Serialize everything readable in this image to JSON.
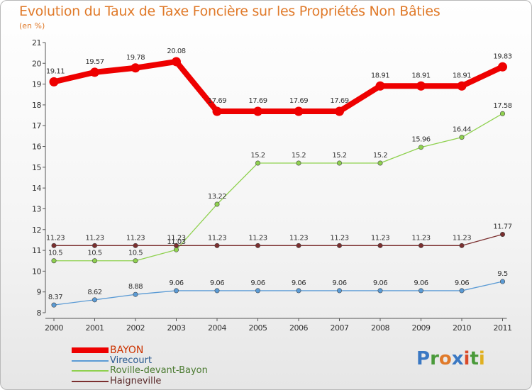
{
  "title": "Evolution du Taux de Taxe Foncière sur les Propriétés Non Bâties",
  "subtitle": "(en %)",
  "logo": {
    "letters": [
      {
        "ch": "P",
        "color": "#3a78c3"
      },
      {
        "ch": "r",
        "color": "#4a9a3a"
      },
      {
        "ch": "o",
        "color": "#e07a2a"
      },
      {
        "ch": "x",
        "color": "#3a78c3"
      },
      {
        "ch": "i",
        "color": "#d94a2a"
      },
      {
        "ch": "t",
        "color": "#4a9a3a"
      },
      {
        "ch": "i",
        "color": "#e0b020"
      }
    ]
  },
  "chart_data": {
    "type": "line",
    "title": "Evolution du Taux de Taxe Foncière sur les Propriétés Non Bâties",
    "ylabel": "(en %)",
    "xlabel": "",
    "ylim": [
      8,
      21
    ],
    "yticks": [
      "8",
      "9",
      "10",
      "11",
      "12",
      "13",
      "14",
      "15",
      "16",
      "17",
      "18",
      "19",
      "20",
      "21"
    ],
    "grid": false,
    "legend_position": "bottom-left",
    "categories": [
      "2000",
      "2001",
      "2002",
      "2003",
      "2004",
      "2005",
      "2006",
      "2007",
      "2008",
      "2009",
      "2010",
      "2011"
    ],
    "series": [
      {
        "name": "BAYON",
        "color": "#ee0000",
        "values": [
          19.11,
          19.57,
          19.78,
          20.08,
          17.69,
          17.69,
          17.69,
          17.69,
          18.91,
          18.91,
          18.91,
          19.83
        ],
        "labels": [
          "19.11",
          "19.57",
          "19.78",
          "20.08",
          "17.69",
          "17.69",
          "17.69",
          "17.69",
          "18.91",
          "18.91",
          "18.91",
          "19.83"
        ]
      },
      {
        "name": "Virecourt",
        "color": "#5b9bd5",
        "values": [
          8.37,
          8.62,
          8.88,
          9.06,
          9.06,
          9.06,
          9.06,
          9.06,
          9.06,
          9.06,
          9.06,
          9.5
        ],
        "labels": [
          "8.37",
          "8.62",
          "8.88",
          "9.06",
          "9.06",
          "9.06",
          "9.06",
          "9.06",
          "9.06",
          "9.06",
          "9.06",
          "9.5"
        ]
      },
      {
        "name": "Roville-devant-Bayon",
        "color": "#8fd14f",
        "values": [
          10.5,
          10.5,
          10.5,
          11.03,
          13.22,
          15.2,
          15.2,
          15.2,
          15.2,
          15.96,
          16.44,
          17.58
        ],
        "labels": [
          "10.5",
          "10.5",
          "10.5",
          "11.03",
          "13.22",
          "15.2",
          "15.2",
          "15.2",
          "15.2",
          "15.96",
          "16.44",
          "17.58"
        ]
      },
      {
        "name": "Haigneville",
        "color": "#7b2f2f",
        "values": [
          11.23,
          11.23,
          11.23,
          11.23,
          11.23,
          11.23,
          11.23,
          11.23,
          11.23,
          11.23,
          11.23,
          11.77
        ],
        "labels": [
          "11.23",
          "11.23",
          "11.23",
          "11.23",
          "11.23",
          "11.23",
          "11.23",
          "11.23",
          "11.23",
          "11.23",
          "11.23",
          "11.77"
        ]
      }
    ]
  }
}
